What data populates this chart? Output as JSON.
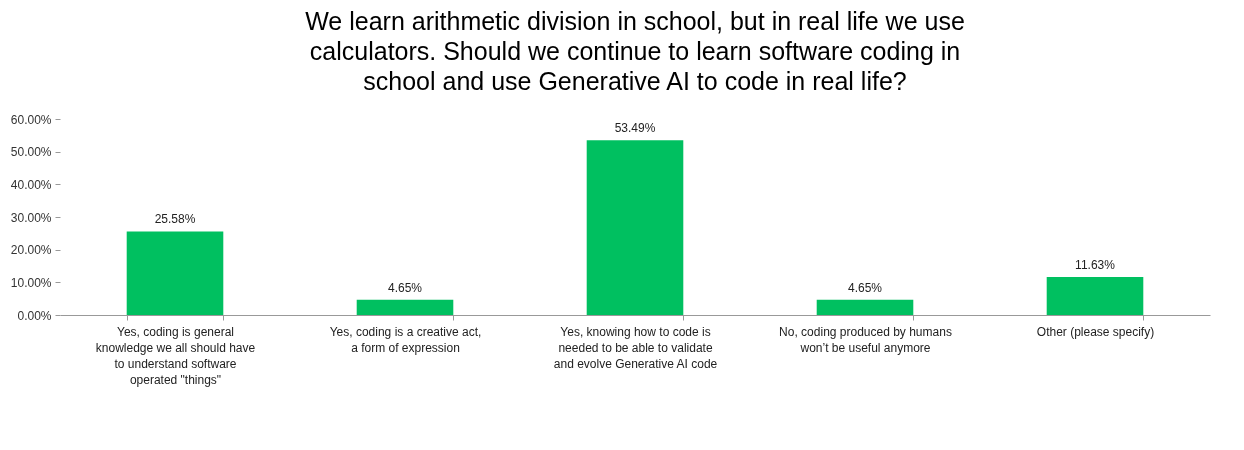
{
  "chart_data": {
    "type": "bar",
    "title": "We learn arithmetic division in school, but in real life we use calculators. Should we continue to learn software coding in school and use Generative AI to code in real life?",
    "categories": [
      "Yes, coding is general knowledge we all should have to understand software operated \"things\"",
      "Yes, coding is a creative act, a form of expression",
      "Yes, knowing how to code is needed to be able to validate and evolve Generative AI code",
      "No, coding produced by humans won’t be useful anymore",
      "Other (please specify)"
    ],
    "values": [
      25.58,
      4.65,
      53.49,
      4.65,
      11.63
    ],
    "value_labels": [
      "25.58%",
      "4.65%",
      "53.49%",
      "4.65%",
      "11.63%"
    ],
    "color": "#00c060",
    "ylim": [
      0,
      60
    ],
    "yticks": [
      {
        "value": 0,
        "label": "0.00%"
      },
      {
        "value": 10,
        "label": "10.00%"
      },
      {
        "value": 20,
        "label": "20.00%"
      },
      {
        "value": 30,
        "label": "30.00%"
      },
      {
        "value": 40,
        "label": "40.00%"
      },
      {
        "value": 50,
        "label": "50.00%"
      },
      {
        "value": 60,
        "label": "60.00%"
      }
    ],
    "grid": false
  }
}
